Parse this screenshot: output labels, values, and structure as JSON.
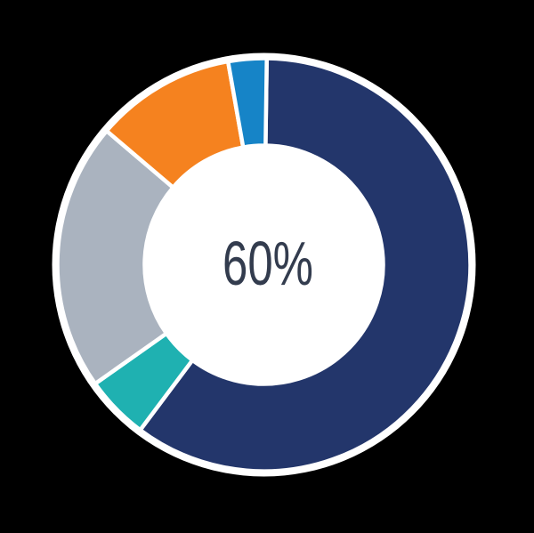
{
  "chart_data": {
    "type": "pie",
    "subtype": "donut",
    "title": "",
    "center_label": "60%",
    "label_color": "#333C4E",
    "background_color": "#000000",
    "ring_outline_color": "#FFFFFF",
    "hole_color": "#FFFFFF",
    "legend": "none",
    "rotation_deg": 0.8,
    "segments": [
      {
        "name": "navy-primary",
        "value": 60,
        "color": "#23366B"
      },
      {
        "name": "teal",
        "value": 5,
        "color": "#1FB1B1"
      },
      {
        "name": "gray",
        "value": 21,
        "color": "#AAB3BF"
      },
      {
        "name": "orange",
        "value": 11,
        "color": "#F5821F"
      },
      {
        "name": "blue",
        "value": 3,
        "color": "#1684C7"
      }
    ]
  }
}
